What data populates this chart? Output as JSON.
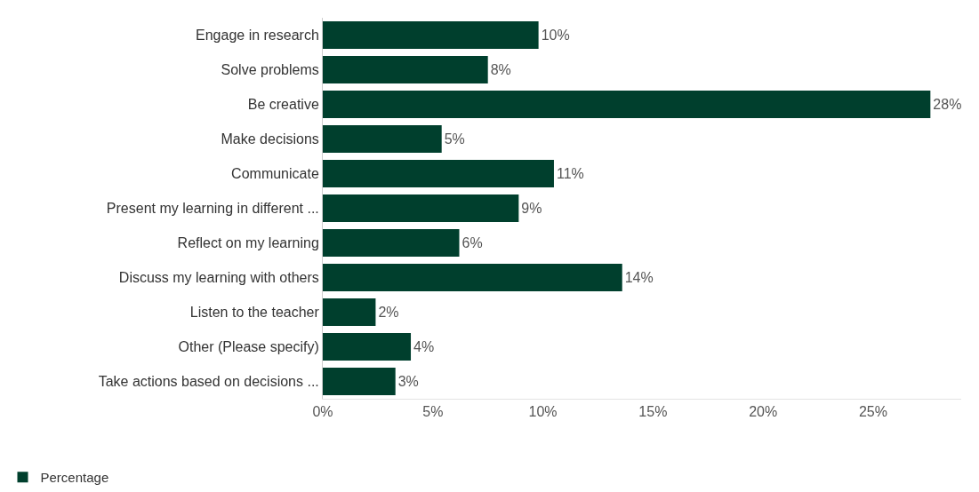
{
  "chart_data": {
    "type": "bar",
    "orientation": "horizontal",
    "categories": [
      "Engage in research",
      "Solve problems",
      "Be creative",
      "Make decisions",
      "Communicate",
      "Present my learning in different ...",
      "Reflect on my learning",
      "Discuss my learning with others",
      "Listen to the teacher",
      "Other (Please specify)",
      "Take actions based on decisions ..."
    ],
    "series": [
      {
        "name": "Percentage",
        "color": "#003f2d",
        "values": [
          9.8,
          7.5,
          27.6,
          5.4,
          10.5,
          8.9,
          6.2,
          13.6,
          2.4,
          4.0,
          3.3
        ],
        "value_labels": [
          "10%",
          "8%",
          "28%",
          "5%",
          "11%",
          "9%",
          "6%",
          "14%",
          "2%",
          "4%",
          "3%"
        ]
      }
    ],
    "xlim": [
      0,
      29
    ],
    "xticks": [
      {
        "value": 0,
        "label": "0%"
      },
      {
        "value": 5,
        "label": "5%"
      },
      {
        "value": 10,
        "label": "10%"
      },
      {
        "value": 15,
        "label": "15%"
      },
      {
        "value": 20,
        "label": "20%"
      },
      {
        "value": 25,
        "label": "25%"
      }
    ],
    "grid": false,
    "legend": "bottom left"
  }
}
